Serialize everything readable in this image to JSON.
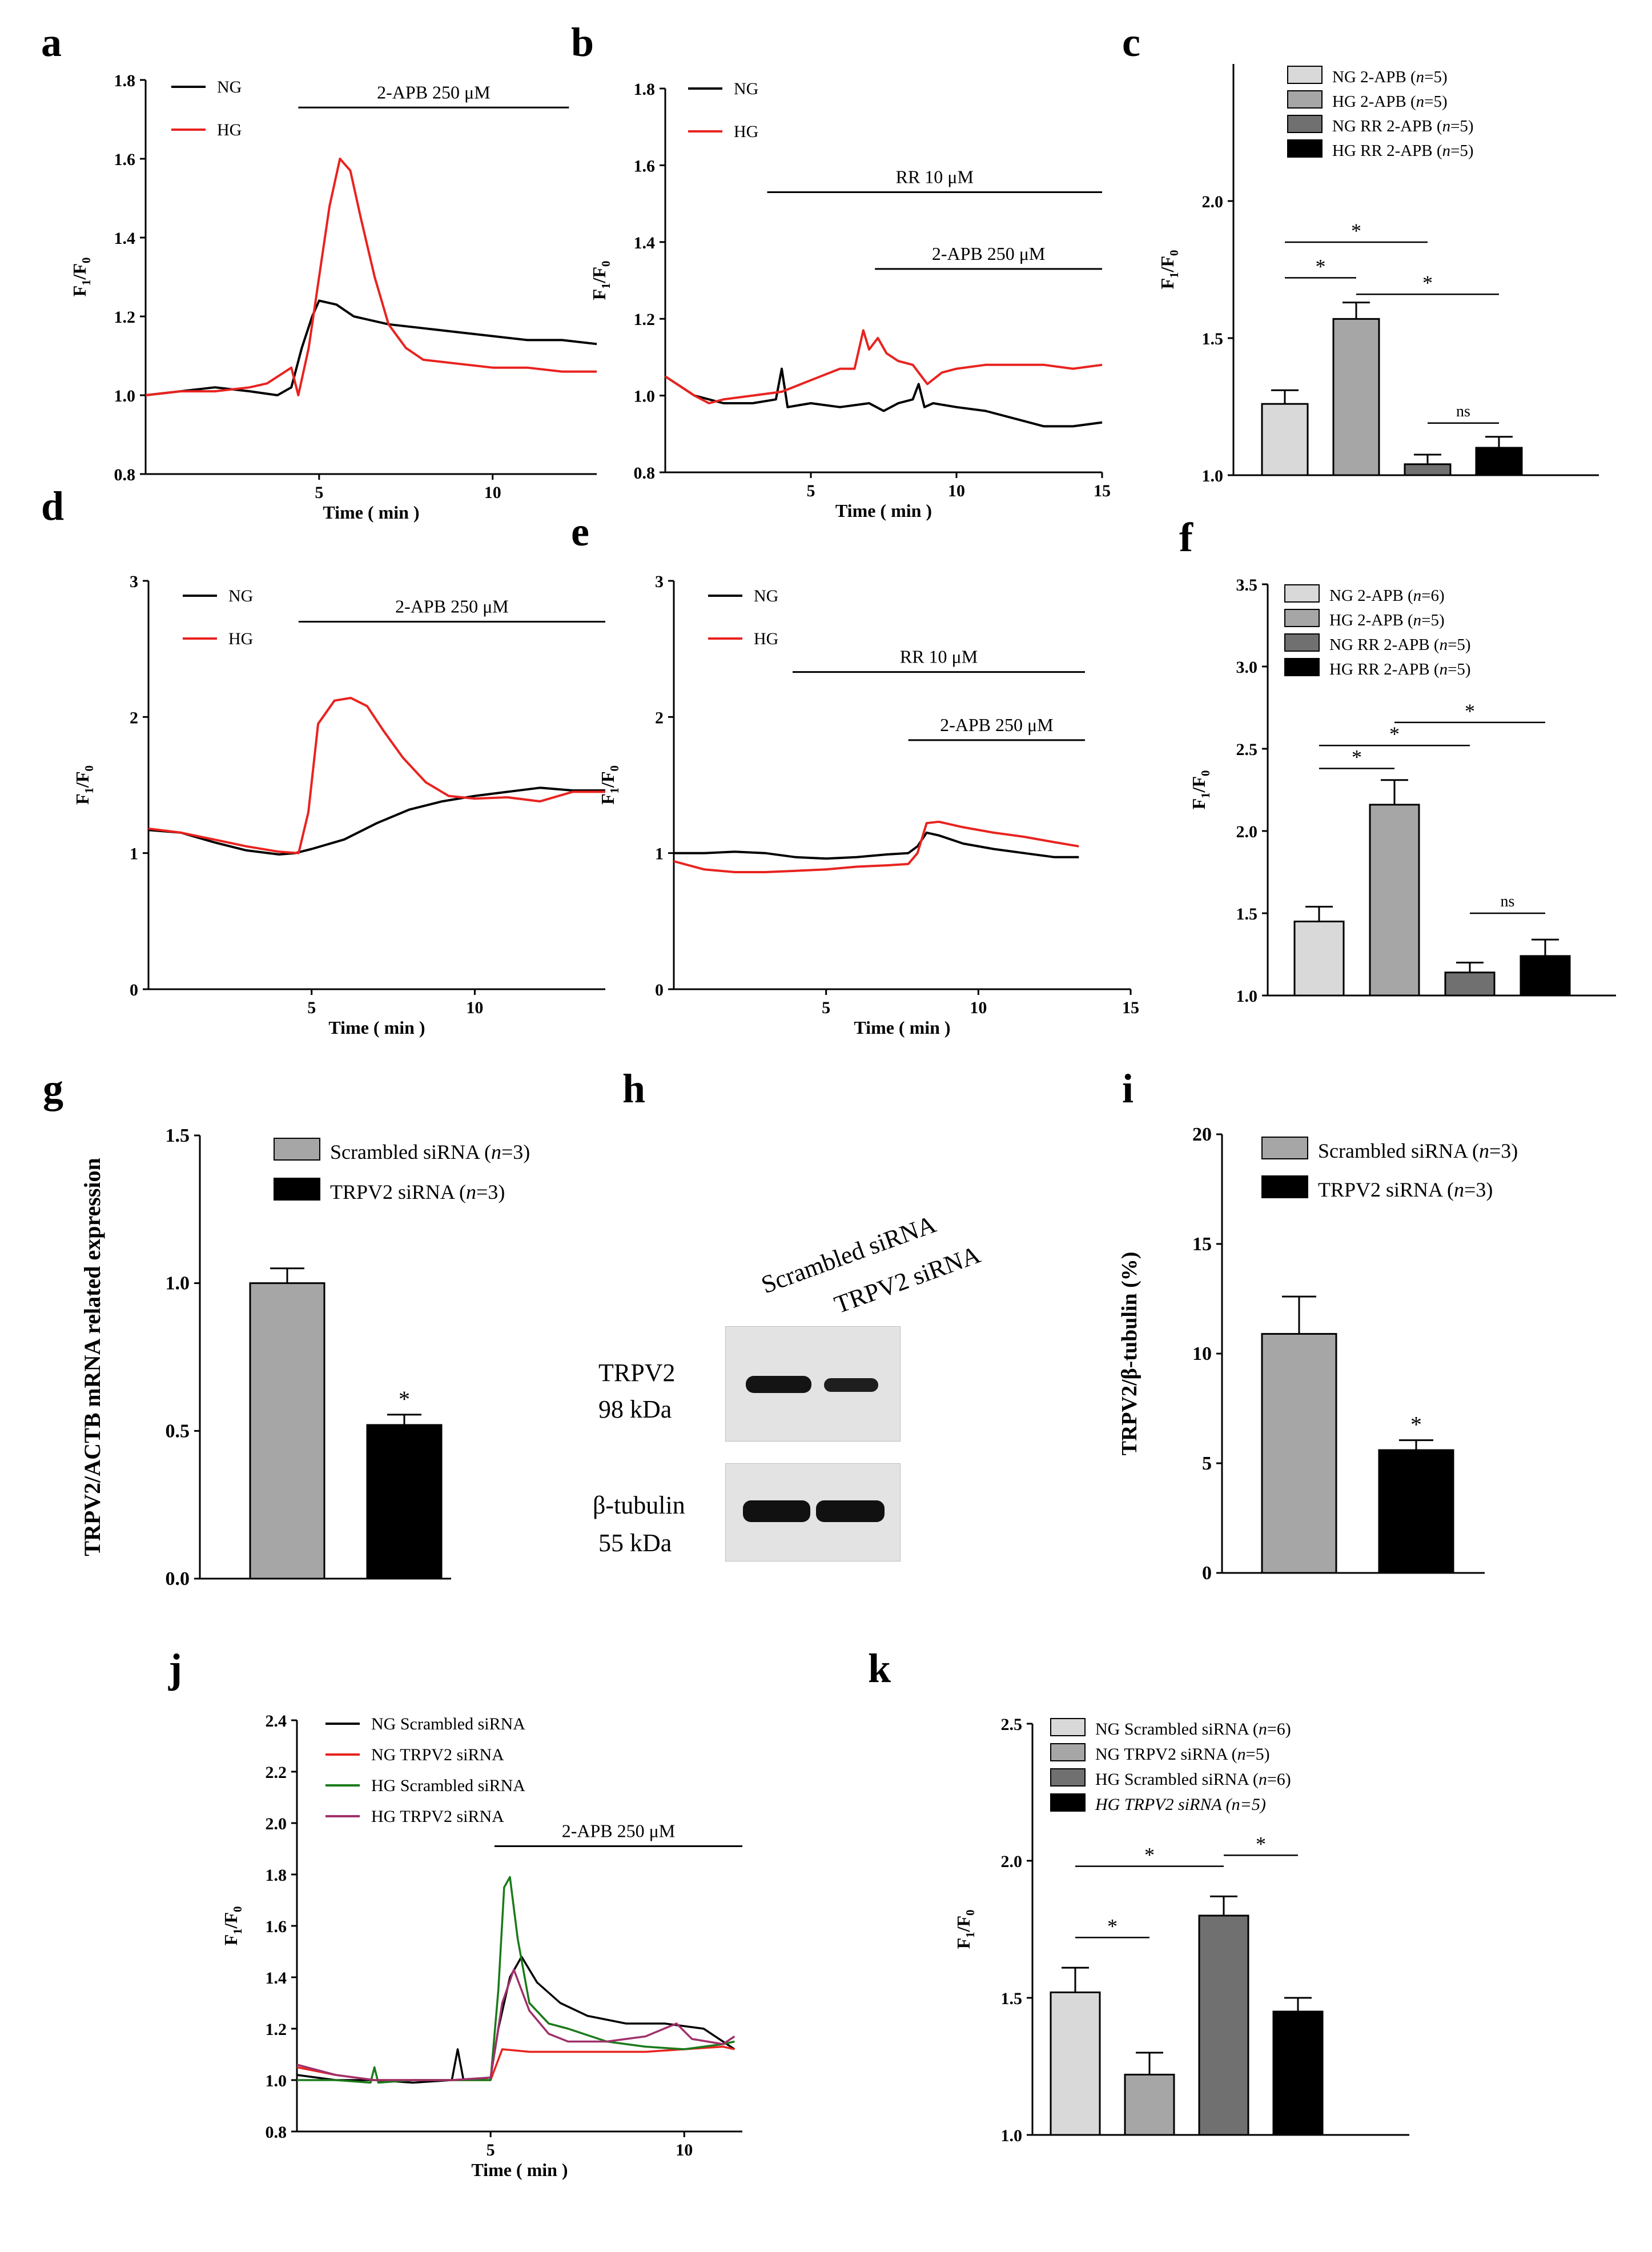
{
  "figure": {
    "panel_letters": [
      "a",
      "b",
      "c",
      "d",
      "e",
      "f",
      "g",
      "h",
      "i",
      "j",
      "k"
    ],
    "western_blot": {
      "lane_labels": [
        "Scrambled siRNA",
        "TRPV2 siRNA"
      ],
      "blots": [
        {
          "protein": "TRPV2",
          "size": "98 kDa"
        },
        {
          "protein": "β-tubulin",
          "size": "55 kDa"
        }
      ]
    }
  },
  "chart_data": [
    {
      "id": "a",
      "type": "line",
      "xlabel": "Time ( min )",
      "ylabel": "F1/F0",
      "xlim": [
        0,
        13
      ],
      "ylim": [
        0.8,
        1.8
      ],
      "xticks": [
        5,
        10
      ],
      "yticks": [
        0.8,
        1.0,
        1.2,
        1.4,
        1.6,
        1.8
      ],
      "yticklabels": [
        "0.8",
        "1.0",
        "1.2",
        "1.4",
        "1.6",
        "1.8"
      ],
      "annotations": [
        {
          "label": "2-APB 250 μM",
          "x_start": 4.4,
          "x_end": 12.2,
          "y": 1.73
        }
      ],
      "series": [
        {
          "name": "NG",
          "color": "#000000",
          "x": [
            0,
            1,
            2,
            3,
            3.8,
            4.2,
            4.5,
            4.8,
            5.0,
            5.5,
            6,
            7,
            8,
            9,
            10,
            11,
            12,
            13
          ],
          "y": [
            1.0,
            1.01,
            1.02,
            1.01,
            1.0,
            1.02,
            1.12,
            1.2,
            1.24,
            1.23,
            1.2,
            1.18,
            1.17,
            1.16,
            1.15,
            1.14,
            1.14,
            1.13
          ]
        },
        {
          "name": "HG",
          "color": "#e8231f",
          "x": [
            0,
            1,
            2,
            3,
            3.5,
            4.2,
            4.4,
            4.7,
            5.0,
            5.3,
            5.6,
            5.9,
            6.2,
            6.6,
            7.0,
            7.5,
            8,
            9,
            10,
            11,
            12,
            13
          ],
          "y": [
            1.0,
            1.01,
            1.01,
            1.02,
            1.03,
            1.07,
            1.0,
            1.12,
            1.3,
            1.48,
            1.6,
            1.57,
            1.45,
            1.3,
            1.18,
            1.12,
            1.09,
            1.08,
            1.07,
            1.07,
            1.06,
            1.06
          ]
        }
      ]
    },
    {
      "id": "b",
      "type": "line",
      "xlabel": "Time ( min )",
      "ylabel": "F1/F0",
      "xlim": [
        0,
        15
      ],
      "ylim": [
        0.8,
        1.8
      ],
      "xticks": [
        5,
        10,
        15
      ],
      "yticks": [
        0.8,
        1.0,
        1.2,
        1.4,
        1.6,
        1.8
      ],
      "yticklabels": [
        "0.8",
        "1.0",
        "1.2",
        "1.4",
        "1.6",
        "1.8"
      ],
      "annotations": [
        {
          "label": "RR 10 μM",
          "x_start": 3.5,
          "x_end": 15,
          "y": 1.53
        },
        {
          "label": "2-APB 250 μM",
          "x_start": 7.2,
          "x_end": 15,
          "y": 1.33
        }
      ],
      "series": [
        {
          "name": "NG",
          "color": "#000000",
          "x": [
            0,
            1,
            2,
            3,
            3.8,
            4.0,
            4.2,
            5,
            6,
            7,
            7.5,
            8,
            8.5,
            8.7,
            8.9,
            9.2,
            10,
            11,
            12,
            13,
            14,
            15
          ],
          "y": [
            1.05,
            1.0,
            0.98,
            0.98,
            0.99,
            1.07,
            0.97,
            0.98,
            0.97,
            0.98,
            0.96,
            0.98,
            0.99,
            1.03,
            0.97,
            0.98,
            0.97,
            0.96,
            0.94,
            0.92,
            0.92,
            0.93
          ]
        },
        {
          "name": "HG",
          "color": "#e8231f",
          "x": [
            0,
            1,
            1.5,
            2,
            3,
            4,
            5,
            6,
            6.5,
            6.8,
            7.0,
            7.3,
            7.6,
            8,
            8.5,
            8.8,
            9,
            9.5,
            10,
            11,
            12,
            13,
            14,
            15
          ],
          "y": [
            1.05,
            1.0,
            0.98,
            0.99,
            1.0,
            1.01,
            1.04,
            1.07,
            1.07,
            1.17,
            1.12,
            1.15,
            1.11,
            1.09,
            1.08,
            1.05,
            1.03,
            1.06,
            1.07,
            1.08,
            1.08,
            1.08,
            1.07,
            1.08
          ]
        }
      ]
    },
    {
      "id": "c",
      "type": "bar",
      "ylabel": "F1/F0",
      "ylim": [
        1.0,
        2.5
      ],
      "yticks": [
        1.0,
        1.5,
        2.0
      ],
      "yticklabels": [
        "1.0",
        "1.5",
        "2.0"
      ],
      "categories": [
        "NG 2-APB",
        "HG 2-APB",
        "NG RR 2-APB",
        "HG RR 2-APB"
      ],
      "legend": [
        "NG 2-APB (n=5)",
        "HG 2-APB (n=5)",
        "NG RR 2-APB (n=5)",
        "HG RR 2-APB (n=5)"
      ],
      "colors": [
        "#d9d9d9",
        "#a6a6a6",
        "#707070",
        "#000000"
      ],
      "values": [
        1.26,
        1.57,
        1.04,
        1.1
      ],
      "errors": [
        0.05,
        0.06,
        0.035,
        0.04
      ],
      "significance": [
        {
          "from": 0,
          "to": 1,
          "label": "*",
          "y": 1.72
        },
        {
          "from": 0,
          "to": 2,
          "label": "*",
          "y": 1.85
        },
        {
          "from": 1,
          "to": 3,
          "label": "*",
          "y": 1.66
        },
        {
          "from": 2,
          "to": 3,
          "label": "ns",
          "y": 1.19
        }
      ]
    },
    {
      "id": "d",
      "type": "line",
      "xlabel": "Time ( min )",
      "ylabel": "F1/F0",
      "xlim": [
        0,
        14
      ],
      "ylim": [
        0,
        3
      ],
      "xticks": [
        5,
        10
      ],
      "yticks": [
        0,
        1,
        2,
        3
      ],
      "yticklabels": [
        "0",
        "1",
        "2",
        "3"
      ],
      "annotations": [
        {
          "label": "2-APB 250 μM",
          "x_start": 4.6,
          "x_end": 14,
          "y": 2.7
        }
      ],
      "series": [
        {
          "name": "NG",
          "color": "#000000",
          "x": [
            0,
            1,
            2,
            3,
            4,
            4.5,
            5,
            6,
            7,
            8,
            9,
            10,
            11,
            12,
            13,
            14
          ],
          "y": [
            1.17,
            1.15,
            1.08,
            1.02,
            0.99,
            1.0,
            1.03,
            1.1,
            1.22,
            1.32,
            1.38,
            1.42,
            1.45,
            1.48,
            1.46,
            1.46
          ]
        },
        {
          "name": "HG",
          "color": "#e8231f",
          "x": [
            0,
            1,
            2,
            3,
            4,
            4.6,
            4.9,
            5.2,
            5.7,
            6.2,
            6.7,
            7.2,
            7.8,
            8.5,
            9.2,
            10,
            11,
            12,
            13,
            14
          ],
          "y": [
            1.18,
            1.15,
            1.1,
            1.05,
            1.01,
            1.0,
            1.3,
            1.95,
            2.12,
            2.14,
            2.08,
            1.9,
            1.7,
            1.52,
            1.42,
            1.4,
            1.41,
            1.38,
            1.45,
            1.45
          ]
        }
      ]
    },
    {
      "id": "e",
      "type": "line",
      "xlabel": "Time ( min )",
      "ylabel": "F1/F0",
      "xlim": [
        0,
        15
      ],
      "ylim": [
        0,
        3
      ],
      "xticks": [
        5,
        10,
        15
      ],
      "yticks": [
        0,
        1,
        2,
        3
      ],
      "yticklabels": [
        "0",
        "1",
        "2",
        "3"
      ],
      "annotations": [
        {
          "label": "RR 10 μM",
          "x_start": 3.9,
          "x_end": 13.5,
          "y": 2.33
        },
        {
          "label": "2-APB 250 μM",
          "x_start": 7.7,
          "x_end": 13.5,
          "y": 1.83
        }
      ],
      "series": [
        {
          "name": "NG",
          "color": "#000000",
          "x": [
            0,
            1,
            2,
            3,
            4,
            5,
            6,
            7,
            7.7,
            8.0,
            8.3,
            8.7,
            9.5,
            10.5,
            11.5,
            12.5,
            13.3
          ],
          "y": [
            1.0,
            1.0,
            1.01,
            1.0,
            0.97,
            0.96,
            0.97,
            0.99,
            1.0,
            1.05,
            1.15,
            1.13,
            1.07,
            1.03,
            1.0,
            0.97,
            0.97
          ]
        },
        {
          "name": "HG",
          "color": "#e8231f",
          "x": [
            0,
            1,
            2,
            3,
            4,
            5,
            6,
            7,
            7.7,
            8.0,
            8.3,
            8.7,
            9.5,
            10.5,
            11.5,
            12.5,
            13.3
          ],
          "y": [
            0.94,
            0.88,
            0.86,
            0.86,
            0.87,
            0.88,
            0.9,
            0.91,
            0.92,
            1.0,
            1.22,
            1.23,
            1.19,
            1.15,
            1.12,
            1.08,
            1.05
          ]
        }
      ]
    },
    {
      "id": "f",
      "type": "bar",
      "ylabel": "F1/F0",
      "ylim": [
        1.0,
        3.5
      ],
      "yticks": [
        1.0,
        1.5,
        2.0,
        2.5,
        3.0,
        3.5
      ],
      "yticklabels": [
        "1.0",
        "1.5",
        "2.0",
        "2.5",
        "3.0",
        "3.5"
      ],
      "categories": [
        "NG 2-APB",
        "HG 2-APB",
        "NG RR 2-APB",
        "HG RR 2-APB"
      ],
      "legend": [
        "NG 2-APB (n=6)",
        "HG 2-APB (n=5)",
        "NG RR 2-APB (n=5)",
        "HG RR 2-APB (n=5)"
      ],
      "colors": [
        "#d9d9d9",
        "#a6a6a6",
        "#707070",
        "#000000"
      ],
      "values": [
        1.45,
        2.16,
        1.14,
        1.24
      ],
      "errors": [
        0.09,
        0.15,
        0.06,
        0.1
      ],
      "significance": [
        {
          "from": 0,
          "to": 1,
          "label": "*",
          "y": 2.38
        },
        {
          "from": 0,
          "to": 2,
          "label": "*",
          "y": 2.52
        },
        {
          "from": 1,
          "to": 3,
          "label": "*",
          "y": 2.66
        },
        {
          "from": 2,
          "to": 3,
          "label": "ns",
          "y": 1.5
        }
      ]
    },
    {
      "id": "g",
      "type": "bar",
      "ylabel": "TRPV2/ACTB mRNA related expression",
      "ylim": [
        0,
        1.5
      ],
      "yticks": [
        0,
        0.5,
        1.0,
        1.5
      ],
      "yticklabels": [
        "0.0",
        "0.5",
        "1.0",
        "1.5"
      ],
      "categories": [
        "Scrambled siRNA",
        "TRPV2 siRNA"
      ],
      "legend": [
        "Scrambled siRNA (n=3)",
        "TRPV2 siRNA (n=3)"
      ],
      "colors": [
        "#a6a6a6",
        "#000000"
      ],
      "values": [
        1.0,
        0.52
      ],
      "errors": [
        0.05,
        0.035
      ],
      "significance": [
        {
          "bar": 1,
          "label": "*"
        }
      ]
    },
    {
      "id": "i",
      "type": "bar",
      "ylabel": "TRPV2/β-tubulin (%)",
      "ylim": [
        0,
        20
      ],
      "yticks": [
        0,
        5,
        10,
        15,
        20
      ],
      "yticklabels": [
        "0",
        "5",
        "10",
        "15",
        "20"
      ],
      "categories": [
        "Scrambled siRNA",
        "TRPV2 siRNA"
      ],
      "legend": [
        "Scrambled siRNA (n=3)",
        "TRPV2 siRNA (n=3)"
      ],
      "colors": [
        "#a6a6a6",
        "#000000"
      ],
      "values": [
        10.9,
        5.6
      ],
      "errors": [
        1.7,
        0.45
      ],
      "significance": [
        {
          "bar": 1,
          "label": "*"
        }
      ]
    },
    {
      "id": "j",
      "type": "line",
      "xlabel": "Time ( min )",
      "ylabel": "F1/F0",
      "xlim": [
        0,
        11.5
      ],
      "ylim": [
        0.8,
        2.4
      ],
      "xticks": [
        5,
        10
      ],
      "yticks": [
        0.8,
        1.0,
        1.2,
        1.4,
        1.6,
        1.8,
        2.0,
        2.2,
        2.4
      ],
      "yticklabels": [
        "0.8",
        "1.0",
        "1.2",
        "1.4",
        "1.6",
        "1.8",
        "2.0",
        "2.2",
        "2.4"
      ],
      "annotations": [
        {
          "label": "2-APB 250 μM",
          "x_start": 5.1,
          "x_end": 11.5,
          "y": 1.91
        }
      ],
      "series": [
        {
          "name": "NG Scrambled siRNA",
          "color": "#000000",
          "x": [
            0,
            1,
            2,
            3,
            4,
            4.15,
            4.3,
            5.0,
            5.2,
            5.5,
            5.8,
            6.2,
            6.8,
            7.5,
            8.5,
            9.5,
            10.5,
            11.3
          ],
          "y": [
            1.02,
            1.0,
            1.0,
            0.99,
            1.0,
            1.12,
            1.0,
            1.01,
            1.2,
            1.4,
            1.48,
            1.38,
            1.3,
            1.25,
            1.22,
            1.22,
            1.2,
            1.12
          ]
        },
        {
          "name": "NG TRPV2 siRNA",
          "color": "#e8231f",
          "x": [
            0,
            1,
            2,
            3,
            4,
            5.0,
            5.3,
            6,
            7,
            8,
            9,
            10,
            11,
            11.3
          ],
          "y": [
            1.05,
            1.02,
            1.0,
            1.0,
            1.0,
            1.0,
            1.12,
            1.11,
            1.11,
            1.11,
            1.11,
            1.12,
            1.13,
            1.12
          ]
        },
        {
          "name": "HG Scrambled siRNA",
          "color": "#1a7a1a",
          "x": [
            0,
            1,
            1.9,
            2.0,
            2.1,
            3,
            4,
            5.0,
            5.2,
            5.35,
            5.5,
            5.7,
            6.0,
            6.5,
            7,
            8,
            9,
            10,
            11,
            11.3
          ],
          "y": [
            1.0,
            1.0,
            0.99,
            1.05,
            0.99,
            1.0,
            1.0,
            1.0,
            1.35,
            1.75,
            1.79,
            1.55,
            1.3,
            1.22,
            1.2,
            1.15,
            1.13,
            1.12,
            1.14,
            1.15
          ]
        },
        {
          "name": "HG TRPV2 siRNA",
          "color": "#a0306a",
          "x": [
            0,
            1,
            2,
            3,
            4,
            5.0,
            5.3,
            5.6,
            6.0,
            6.5,
            7,
            8,
            9,
            9.8,
            10.2,
            11,
            11.3
          ],
          "y": [
            1.06,
            1.02,
            1.0,
            1.0,
            1.0,
            1.01,
            1.3,
            1.43,
            1.27,
            1.18,
            1.15,
            1.15,
            1.17,
            1.22,
            1.16,
            1.14,
            1.17
          ]
        }
      ]
    },
    {
      "id": "k",
      "type": "bar",
      "ylabel": "F1/F0",
      "ylim": [
        1.0,
        2.5
      ],
      "yticks": [
        1.0,
        1.5,
        2.0,
        2.5
      ],
      "yticklabels": [
        "1.0",
        "1.5",
        "2.0",
        "2.5"
      ],
      "categories": [
        "NG Scrambled siRNA",
        "NG TRPV2 siRNA",
        "HG Scrambled siRNA",
        "HG TRPV2 siRNA"
      ],
      "legend": [
        "NG Scrambled siRNA (n=6)",
        "NG TRPV2 siRNA (n=5)",
        "HG Scrambled siRNA (n=6)",
        "HG TRPV2 siRNA (n=5)"
      ],
      "colors": [
        "#d9d9d9",
        "#a6a6a6",
        "#707070",
        "#000000"
      ],
      "values": [
        1.52,
        1.22,
        1.8,
        1.45
      ],
      "errors": [
        0.09,
        0.08,
        0.07,
        0.05
      ],
      "significance": [
        {
          "from": 0,
          "to": 1,
          "label": "*",
          "y": 1.72
        },
        {
          "from": 0,
          "to": 2,
          "label": "*",
          "y": 1.98
        },
        {
          "from": 2,
          "to": 3,
          "label": "*",
          "y": 2.02
        }
      ]
    }
  ]
}
